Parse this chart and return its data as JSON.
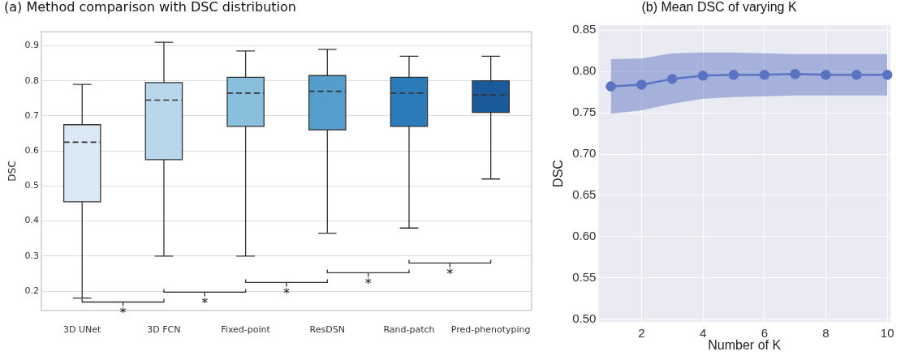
{
  "chart_data": [
    {
      "type": "box",
      "title": "(a) Method comparison with DSC distribution",
      "ylabel": "DSC",
      "categories": [
        "3D UNet",
        "3D FCN",
        "Fixed-point",
        "ResDSN",
        "Rand-patch",
        "Pred-phenotyping"
      ],
      "colors": [
        "#dbe9f6",
        "#bad6eb",
        "#89bedc",
        "#539ecd",
        "#2b7bba",
        "#1b5a9a"
      ],
      "boxes": [
        {
          "low": 0.18,
          "q1": 0.455,
          "median": 0.625,
          "q3": 0.675,
          "high": 0.79
        },
        {
          "low": 0.3,
          "q1": 0.575,
          "median": 0.745,
          "q3": 0.795,
          "high": 0.91
        },
        {
          "low": 0.3,
          "q1": 0.67,
          "median": 0.765,
          "q3": 0.81,
          "high": 0.885
        },
        {
          "low": 0.365,
          "q1": 0.66,
          "median": 0.77,
          "q3": 0.815,
          "high": 0.89
        },
        {
          "low": 0.38,
          "q1": 0.67,
          "median": 0.765,
          "q3": 0.81,
          "high": 0.87
        },
        {
          "low": 0.52,
          "q1": 0.71,
          "median": 0.76,
          "q3": 0.8,
          "high": 0.87
        }
      ],
      "ylim": [
        0.145,
        0.94
      ],
      "yticks": [
        0.2,
        0.3,
        0.4,
        0.5,
        0.6,
        0.7,
        0.8,
        0.9
      ],
      "annotations": [
        "*",
        "*",
        "*",
        "*",
        "*"
      ],
      "grid": "y"
    },
    {
      "type": "line",
      "title": "(b) Mean DSC of varying K",
      "xlabel": "Number of K",
      "ylabel": "DSC",
      "x": [
        1,
        2,
        3,
        4,
        5,
        6,
        7,
        8,
        9,
        10
      ],
      "series": [
        {
          "color": "#5a74c2",
          "values": [
            0.782,
            0.784,
            0.791,
            0.795,
            0.796,
            0.796,
            0.797,
            0.796,
            0.796,
            0.796
          ],
          "lower": [
            0.749,
            0.753,
            0.761,
            0.767,
            0.769,
            0.77,
            0.771,
            0.771,
            0.771,
            0.771
          ],
          "upper": [
            0.815,
            0.816,
            0.822,
            0.823,
            0.823,
            0.822,
            0.821,
            0.821,
            0.821,
            0.821
          ]
        }
      ],
      "xlim": [
        0.6,
        10.1
      ],
      "xticks": [
        2,
        4,
        6,
        8,
        10
      ],
      "ylim": [
        0.497,
        0.856
      ],
      "yticks": [
        {
          "value": 0.5,
          "label": "0.50"
        },
        {
          "value": 0.55,
          "label": "0.55"
        },
        {
          "value": 0.6,
          "label": "0.60"
        },
        {
          "value": 0.65,
          "label": "0.65"
        },
        {
          "value": 0.7,
          "label": "0.70"
        },
        {
          "value": 0.75,
          "label": "0.75"
        },
        {
          "value": 0.8,
          "label": "0.80"
        },
        {
          "value": 0.85,
          "label": "0.85"
        }
      ],
      "grid": true,
      "marker": "circle",
      "line_style": "solid"
    }
  ]
}
